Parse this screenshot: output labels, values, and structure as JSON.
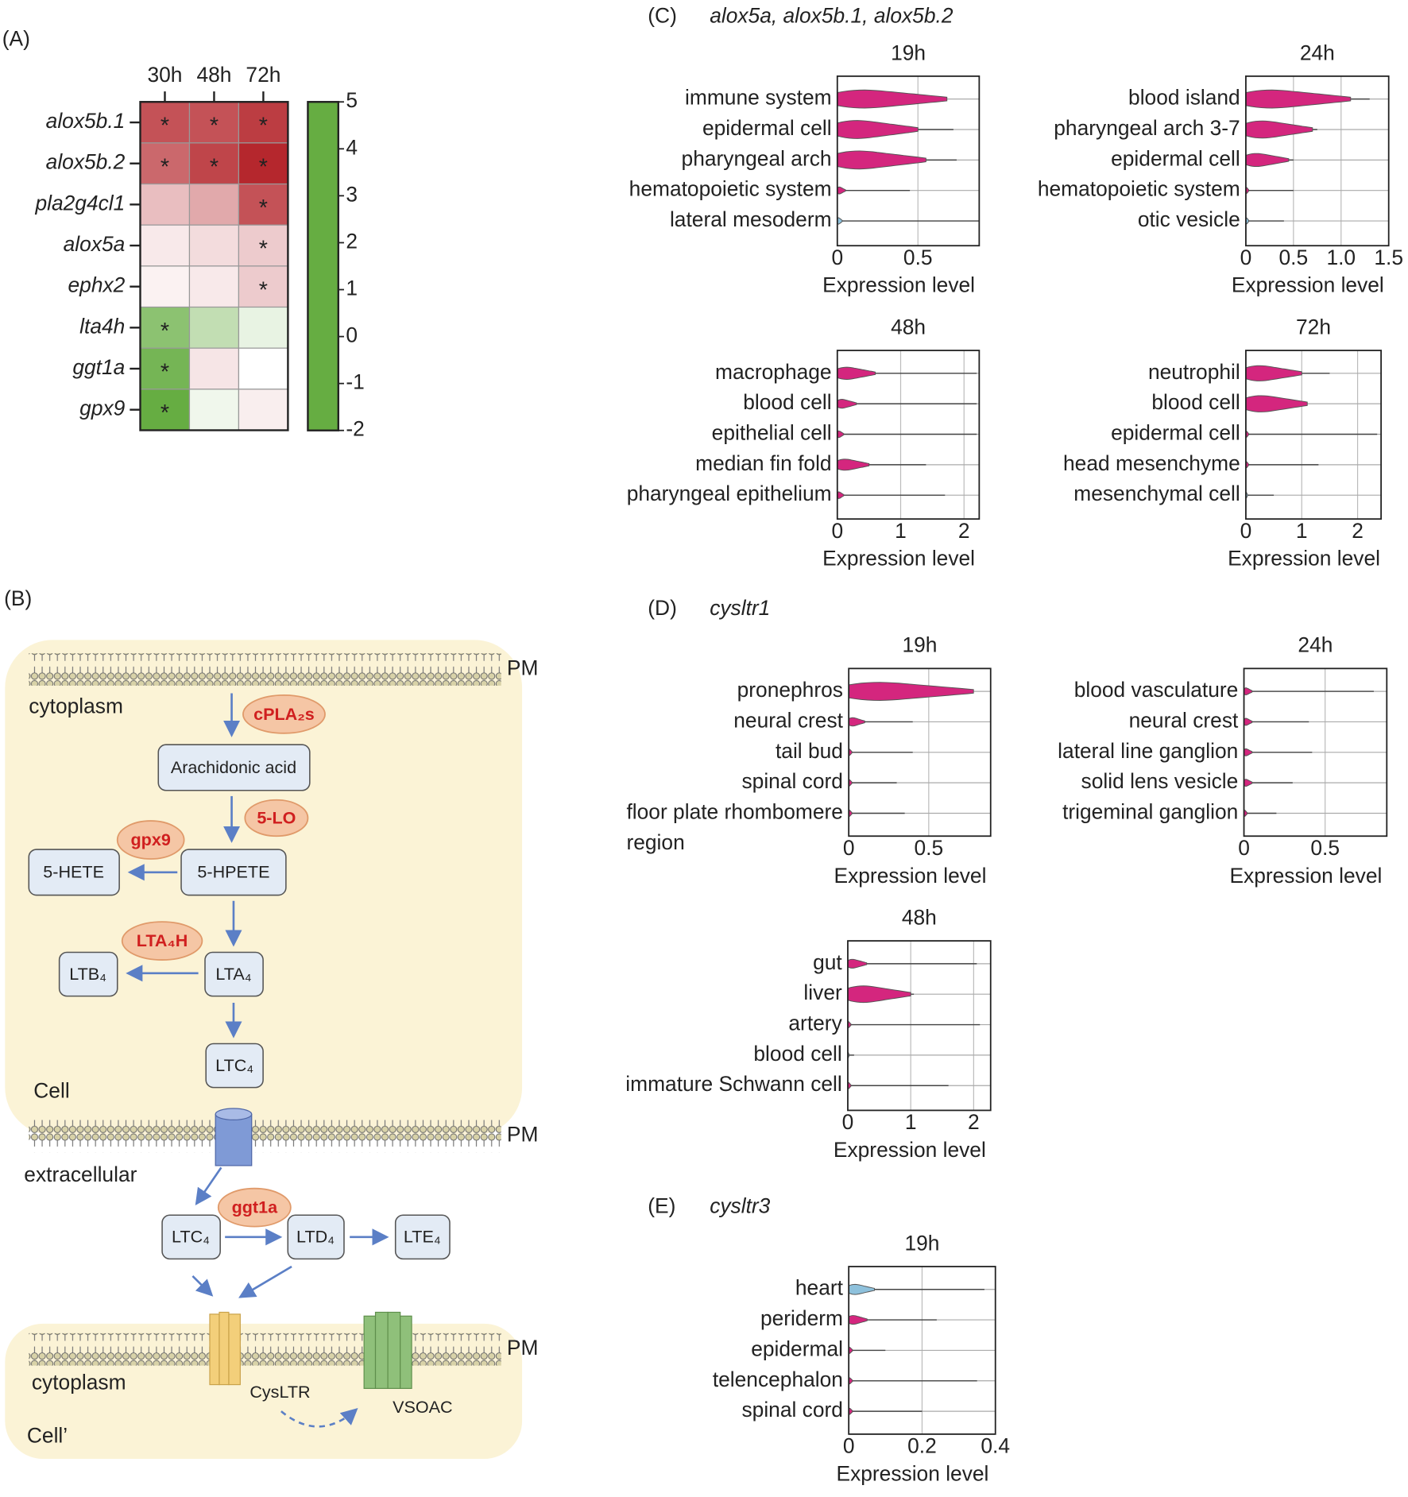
{
  "chart_data": [
    {
      "type": "heatmap",
      "panel_label": "(A)",
      "columns": [
        "30h",
        "48h",
        "72h"
      ],
      "rows": [
        "alox5b.1",
        "alox5b.2",
        "pla2g4cl1",
        "alox5a",
        "ephx2",
        "lta4h",
        "ggt1a",
        "gpx9"
      ],
      "values": [
        [
          4,
          4,
          4.5
        ],
        [
          3.5,
          4.3,
          5
        ],
        [
          1.5,
          2,
          4
        ],
        [
          0.5,
          0.8,
          1.2
        ],
        [
          0.3,
          0.5,
          1.2
        ],
        [
          -1.5,
          -0.8,
          -0.3
        ],
        [
          -1.8,
          0.6,
          0
        ],
        [
          -2,
          -0.2,
          0.4
        ]
      ],
      "annotations": [
        [
          "*",
          "*",
          "*"
        ],
        [
          "*",
          "*",
          "*"
        ],
        [
          null,
          null,
          "*"
        ],
        [
          null,
          null,
          "*"
        ],
        [
          null,
          null,
          "*"
        ],
        [
          "*",
          null,
          null
        ],
        [
          "*",
          null,
          null
        ],
        [
          "*",
          null,
          null
        ]
      ],
      "zlim": [
        -2,
        5
      ],
      "zticks": [
        5,
        4,
        3,
        2,
        1,
        0,
        -1,
        -2
      ],
      "colorscale": [
        [
          -2,
          "#66ad42"
        ],
        [
          0,
          "#ffffff"
        ],
        [
          5,
          "#b5272d"
        ]
      ]
    },
    {
      "type": "violin",
      "panel_label": "(C)",
      "gene": "alox5a, alox5b.1, alox5b.2",
      "title": "19h",
      "xlabel": "Expression level",
      "categories": [
        "immune system",
        "epidermal cell",
        "pharyngeal arch",
        "hematopoietic system",
        "lateral mesoderm"
      ],
      "body": [
        0.68,
        0.5,
        0.55,
        0.05,
        0.03
      ],
      "values": [
        0.68,
        0.72,
        0.74,
        0.45,
        0.88
      ],
      "colors": [
        "#d4267e",
        "#d4267e",
        "#d4267e",
        "#d4267e",
        "#8ec1dc"
      ],
      "xlim": [
        0,
        0.88
      ],
      "xticks": [
        0,
        0.5
      ]
    },
    {
      "type": "violin",
      "title": "24h",
      "xlabel": "Expression level",
      "categories": [
        "blood island",
        "pharyngeal arch 3-7",
        "epidermal cell",
        "hematopoietic system",
        "otic vesicle"
      ],
      "body": [
        1.1,
        0.7,
        0.45,
        0.03,
        0.03
      ],
      "values": [
        1.3,
        0.75,
        0.5,
        0.5,
        0.4
      ],
      "colors": [
        "#d4267e",
        "#d4267e",
        "#d4267e",
        "#d4267e",
        "#8ec1dc"
      ],
      "xlim": [
        0,
        1.5
      ],
      "xticks": [
        0,
        0.5,
        {
          "value": 1,
          "label": "1.0"
        },
        1.5
      ]
    },
    {
      "type": "violin",
      "title": "48h",
      "xlabel": "Expression level",
      "categories": [
        "macrophage",
        "blood cell",
        "epithelial cell",
        "median fin fold",
        "pharyngeal epithelium"
      ],
      "body": [
        0.6,
        0.3,
        0.1,
        0.5,
        0.1
      ],
      "values": [
        2.2,
        2.2,
        2.2,
        1.4,
        1.7
      ],
      "colors": [
        "#d4267e",
        "#d4267e",
        "#d4267e",
        "#d4267e",
        "#d4267e"
      ],
      "xlim": [
        0,
        2.24
      ],
      "xticks": [
        0,
        1,
        2
      ]
    },
    {
      "type": "violin",
      "title": "72h",
      "xlabel": "Expression level",
      "categories": [
        "neutrophil",
        "blood cell",
        "epidermal cell",
        "head mesenchyme",
        "mesenchymal cell"
      ],
      "body": [
        1,
        1.1,
        0.05,
        0.05,
        0.03
      ],
      "values": [
        1.5,
        1.1,
        2.35,
        1.3,
        0.5
      ],
      "colors": [
        "#d4267e",
        "#d4267e",
        "#d4267e",
        "#d4267e",
        "#8ec1dc"
      ],
      "xlim": [
        0,
        2.42
      ],
      "xticks": [
        0,
        1,
        2
      ]
    },
    {
      "type": "violin",
      "panel_label": "(D)",
      "gene": "cysltr1",
      "title": "19h",
      "xlabel": "Expression level",
      "categories": [
        "pronephros",
        "neural crest",
        "tail bud",
        "spinal cord",
        "floor plate rhombomere\nregion"
      ],
      "body": [
        0.78,
        0.1,
        0.02,
        0.02,
        0.02
      ],
      "values": [
        0.78,
        0.4,
        0.4,
        0.3,
        0.35
      ],
      "colors": [
        "#d4267e",
        "#d4267e",
        "#d4267e",
        "#d4267e",
        "#d4267e"
      ],
      "xlim": [
        0,
        0.887
      ],
      "xticks": [
        0,
        0.5
      ]
    },
    {
      "type": "violin",
      "title": "24h",
      "xlabel": "Expression level",
      "categories": [
        "blood vasculature",
        "neural crest",
        "lateral line ganglion",
        "solid lens vesicle",
        "trigeminal ganglion"
      ],
      "body": [
        0.05,
        0.05,
        0.05,
        0.05,
        0.02
      ],
      "values": [
        0.8,
        0.4,
        0.42,
        0.3,
        0.2
      ],
      "colors": [
        "#d4267e",
        "#d4267e",
        "#d4267e",
        "#d4267e",
        "#d4267e"
      ],
      "xlim": [
        0,
        0.88
      ],
      "xticks": [
        0,
        0.5
      ]
    },
    {
      "type": "violin",
      "title": "48h",
      "xlabel": "Expression level",
      "categories": [
        "gut",
        "liver",
        "artery",
        "blood cell",
        "immature Schwann cell"
      ],
      "body": [
        0.3,
        1,
        0.05,
        0.02,
        0.05
      ],
      "values": [
        2.05,
        1.05,
        2.1,
        0.1,
        1.6
      ],
      "colors": [
        "#d4267e",
        "#d4267e",
        "#d4267e",
        "#8ec1dc",
        "#d4267e"
      ],
      "xlim": [
        0,
        2.27
      ],
      "xticks": [
        0,
        1,
        2
      ]
    },
    {
      "type": "violin",
      "panel_label": "(E)",
      "gene": "cysltr3",
      "title": "19h",
      "xlabel": "Expression level",
      "categories": [
        "heart",
        "periderm",
        "epidermal",
        "telencephalon",
        "spinal cord"
      ],
      "body": [
        0.07,
        0.05,
        0.01,
        0.01,
        0.01
      ],
      "values": [
        0.37,
        0.24,
        0.1,
        0.35,
        0.2
      ],
      "colors": [
        "#8ec1dc",
        "#d4267e",
        "#d4267e",
        "#d4267e",
        "#d4267e"
      ],
      "xlim": [
        0,
        0.4
      ],
      "xticks": [
        0,
        0.2,
        0.4
      ]
    }
  ],
  "diagram": {
    "panel_label": "(B)",
    "membranes": [
      "PM",
      "PM",
      "PM"
    ],
    "compartments": [
      "cytoplasm",
      "Cell",
      "extracellular",
      "cytoplasm",
      "Cell’"
    ],
    "enzymes": [
      "cPLA₂s",
      "5-LO",
      "gpx9",
      "LTA₄H",
      "ggt1a"
    ],
    "metabolites": [
      "Arachidonic acid",
      "5-HETE",
      "5-HPETE",
      "LTB₄",
      "LTA₄",
      "LTC₄",
      "LTC₄",
      "LTD₄",
      "LTE₄"
    ],
    "receptors": [
      "CysLTR",
      "VSOAC"
    ]
  }
}
